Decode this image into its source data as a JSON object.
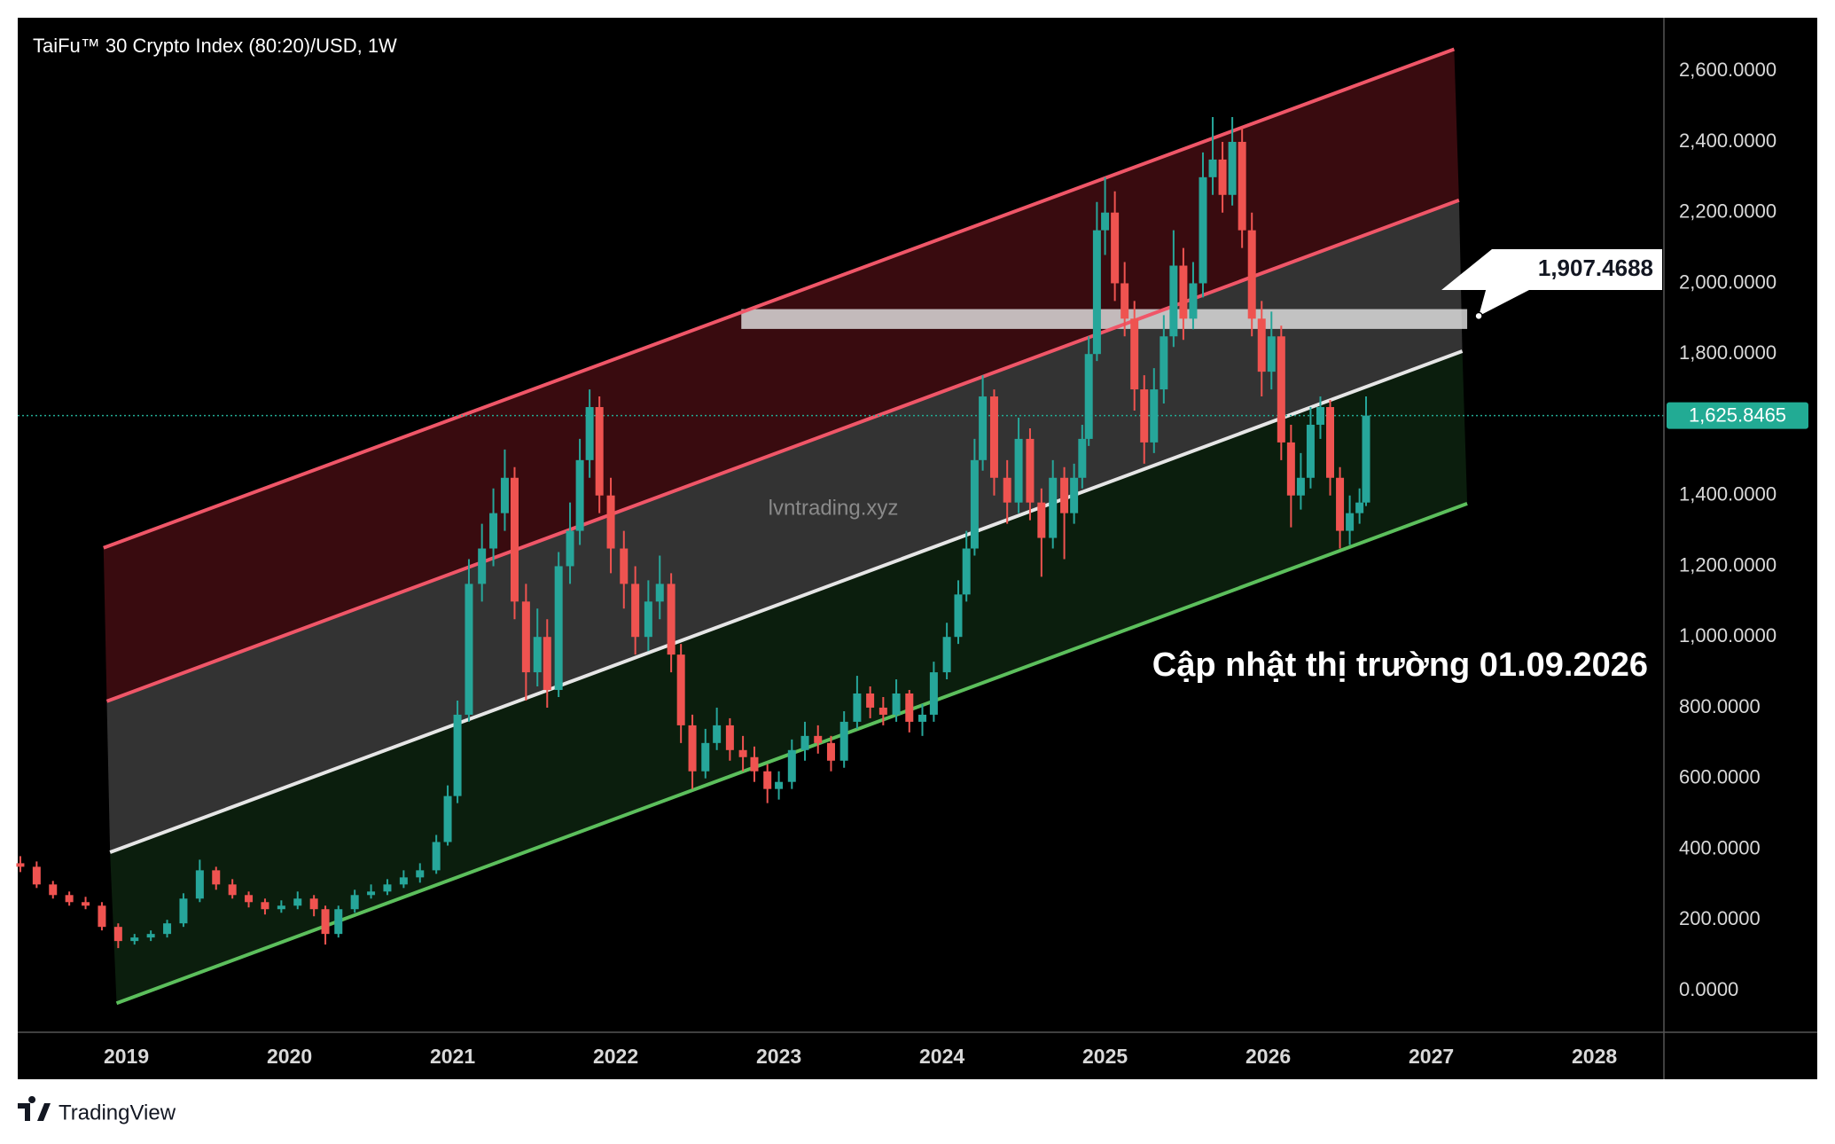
{
  "brand": "TradingView",
  "chart_data": {
    "type": "candlestick",
    "title": "TaiFu™ 30 Crypto Index (80:20)/USD, 1W",
    "watermark": "lvntrading.xyz",
    "annotation": "Cập nhật thị trường 01.09.2026",
    "up_color": "#26a69a",
    "down_color": "#ef5350",
    "x": [
      2018.35,
      2018.45,
      2018.55,
      2018.65,
      2018.75,
      2018.85,
      2018.95,
      2019.05,
      2019.15,
      2019.25,
      2019.35,
      2019.45,
      2019.55,
      2019.65,
      2019.75,
      2019.85,
      2019.95,
      2020.05,
      2020.15,
      2020.22,
      2020.3,
      2020.4,
      2020.5,
      2020.6,
      2020.7,
      2020.8,
      2020.9,
      2020.97,
      2021.03,
      2021.1,
      2021.18,
      2021.25,
      2021.32,
      2021.38,
      2021.45,
      2021.52,
      2021.58,
      2021.65,
      2021.72,
      2021.78,
      2021.84,
      2021.9,
      2021.97,
      2022.05,
      2022.12,
      2022.2,
      2022.27,
      2022.34,
      2022.4,
      2022.47,
      2022.55,
      2022.62,
      2022.7,
      2022.78,
      2022.85,
      2022.93,
      2023.0,
      2023.08,
      2023.16,
      2023.24,
      2023.32,
      2023.4,
      2023.48,
      2023.56,
      2023.64,
      2023.72,
      2023.8,
      2023.88,
      2023.95,
      2024.03,
      2024.1,
      2024.15,
      2024.2,
      2024.25,
      2024.32,
      2024.4,
      2024.47,
      2024.54,
      2024.61,
      2024.68,
      2024.75,
      2024.81,
      2024.86,
      2024.9,
      2024.95,
      2025.0,
      2025.06,
      2025.12,
      2025.18,
      2025.24,
      2025.3,
      2025.36,
      2025.42,
      2025.48,
      2025.54,
      2025.6,
      2025.66,
      2025.72,
      2025.78,
      2025.84,
      2025.9,
      2025.96,
      2026.02,
      2026.08,
      2026.14,
      2026.2,
      2026.26,
      2026.32,
      2026.38,
      2026.44,
      2026.5,
      2026.56,
      2026.6
    ],
    "open": [
      360,
      350,
      300,
      270,
      250,
      240,
      180,
      140,
      150,
      160,
      190,
      260,
      340,
      300,
      270,
      250,
      230,
      240,
      260,
      230,
      160,
      230,
      270,
      280,
      300,
      320,
      340,
      420,
      550,
      780,
      1150,
      1250,
      1350,
      1450,
      1100,
      900,
      1000,
      850,
      1200,
      1300,
      1500,
      1650,
      1400,
      1250,
      1150,
      1000,
      1100,
      1150,
      950,
      750,
      620,
      700,
      750,
      680,
      660,
      620,
      570,
      590,
      680,
      720,
      700,
      650,
      760,
      840,
      800,
      780,
      840,
      760,
      780,
      900,
      1000,
      1120,
      1250,
      1500,
      1680,
      1450,
      1380,
      1560,
      1380,
      1280,
      1450,
      1350,
      1450,
      1560,
      1800,
      2150,
      2200,
      2000,
      1900,
      1700,
      1550,
      1700,
      1850,
      2050,
      1900,
      2000,
      2300,
      2350,
      2250,
      2400,
      2150,
      1900,
      1750,
      1850,
      1550,
      1400,
      1450,
      1600,
      1650,
      1450,
      1300,
      1350,
      1380
    ],
    "high": [
      380,
      365,
      310,
      280,
      265,
      250,
      190,
      160,
      170,
      200,
      275,
      370,
      350,
      315,
      280,
      260,
      255,
      280,
      270,
      240,
      240,
      285,
      300,
      315,
      340,
      360,
      440,
      580,
      820,
      1220,
      1320,
      1420,
      1530,
      1480,
      1150,
      1080,
      1050,
      1240,
      1380,
      1560,
      1700,
      1680,
      1450,
      1300,
      1200,
      1160,
      1230,
      1180,
      980,
      780,
      740,
      800,
      770,
      720,
      690,
      640,
      620,
      710,
      760,
      750,
      720,
      790,
      890,
      860,
      830,
      880,
      850,
      810,
      930,
      1040,
      1160,
      1300,
      1560,
      1740,
      1700,
      1500,
      1620,
      1590,
      1420,
      1500,
      1480,
      1490,
      1600,
      1850,
      2230,
      2300,
      2260,
      2060,
      1950,
      1740,
      1760,
      1910,
      2150,
      2100,
      2060,
      2370,
      2470,
      2400,
      2470,
      2440,
      2200,
      1950,
      1920,
      1880,
      1600,
      1520,
      1650,
      1680,
      1670,
      1480,
      1400,
      1420,
      1680
    ],
    "low": [
      335,
      290,
      260,
      240,
      230,
      170,
      120,
      130,
      140,
      150,
      180,
      250,
      285,
      260,
      235,
      215,
      220,
      230,
      210,
      130,
      150,
      220,
      260,
      270,
      290,
      305,
      330,
      410,
      530,
      760,
      1100,
      1200,
      1300,
      1050,
      820,
      860,
      800,
      830,
      1150,
      1260,
      1450,
      1350,
      1180,
      1080,
      950,
      960,
      1050,
      900,
      700,
      570,
      600,
      680,
      650,
      620,
      590,
      530,
      540,
      570,
      650,
      670,
      620,
      630,
      740,
      770,
      750,
      760,
      730,
      720,
      760,
      880,
      980,
      1100,
      1230,
      1470,
      1400,
      1320,
      1350,
      1330,
      1170,
      1250,
      1220,
      1320,
      1420,
      1540,
      1780,
      2080,
      1950,
      1850,
      1640,
      1490,
      1520,
      1660,
      1820,
      1840,
      1870,
      1960,
      2250,
      2200,
      2220,
      2100,
      1850,
      1680,
      1700,
      1500,
      1310,
      1360,
      1420,
      1560,
      1400,
      1250,
      1260,
      1320,
      1370
    ],
    "close": [
      350,
      300,
      270,
      250,
      240,
      180,
      140,
      150,
      160,
      190,
      260,
      340,
      300,
      270,
      250,
      230,
      240,
      260,
      230,
      160,
      230,
      270,
      280,
      300,
      320,
      340,
      420,
      550,
      780,
      1150,
      1250,
      1350,
      1450,
      1100,
      900,
      1000,
      850,
      1200,
      1300,
      1500,
      1650,
      1400,
      1250,
      1150,
      1000,
      1100,
      1150,
      950,
      750,
      620,
      700,
      750,
      680,
      660,
      620,
      570,
      590,
      680,
      720,
      700,
      650,
      760,
      840,
      800,
      780,
      840,
      760,
      780,
      900,
      1000,
      1120,
      1250,
      1500,
      1680,
      1450,
      1380,
      1560,
      1380,
      1280,
      1450,
      1350,
      1450,
      1560,
      1800,
      2150,
      2200,
      2000,
      1900,
      1700,
      1550,
      1700,
      1850,
      2050,
      1900,
      2000,
      2300,
      2350,
      2250,
      2400,
      2150,
      1900,
      1750,
      1850,
      1550,
      1400,
      1450,
      1600,
      1650,
      1450,
      1300,
      1350,
      1380,
      1626
    ],
    "channels": [
      {
        "x": [
          2018.86,
          2027.14
        ],
        "values": [
          1252,
          2662
        ],
        "color": "#f05668"
      },
      {
        "x": [
          2018.88,
          2027.17
        ],
        "values": [
          818,
          2235
        ],
        "color": "#f05668"
      },
      {
        "x": [
          2018.9,
          2027.19
        ],
        "values": [
          391,
          1808
        ],
        "color": "#e6e6e6"
      },
      {
        "x": [
          2018.94,
          2027.22
        ],
        "values": [
          -36,
          1377
        ],
        "color": "#5cbf5c"
      }
    ],
    "zone_colors": [
      "rgba(150,30,40,0.38)",
      "rgba(255,255,255,0.2)",
      "rgba(45,120,50,0.25)"
    ],
    "level_zone": {
      "x": [
        2022.77,
        2027.22
      ],
      "values": [
        1871,
        1927
      ],
      "value": 1907.4688,
      "label": "1,907.4688",
      "color": "rgba(230,230,230,0.8)"
    },
    "last_price": {
      "value": 1625.8465,
      "label": "1,625.8465",
      "color": "#22ab94"
    },
    "xlim": [
      2018.334,
      2028.426
    ],
    "ylim": [
      -118,
      2751
    ],
    "xticks": [
      2019,
      2020,
      2021,
      2022,
      2023,
      2024,
      2025,
      2026,
      2027,
      2028
    ],
    "yticks": [
      {
        "value": 2600,
        "label": "2,600.0000"
      },
      {
        "value": 2400,
        "label": "2,400.0000"
      },
      {
        "value": 2200,
        "label": "2,200.0000"
      },
      {
        "value": 2000,
        "label": "2,000.0000"
      },
      {
        "value": 1800,
        "label": "1,800.0000"
      },
      {
        "value": 1400,
        "label": "1,400.0000"
      },
      {
        "value": 1200,
        "label": "1,200.0000"
      },
      {
        "value": 1000,
        "label": "1,000.0000"
      },
      {
        "value": 800,
        "label": "800.0000"
      },
      {
        "value": 600,
        "label": "600.0000"
      },
      {
        "value": 400,
        "label": "400.0000"
      },
      {
        "value": 200,
        "label": "200.0000"
      },
      {
        "value": 0,
        "label": "0.0000"
      }
    ]
  }
}
